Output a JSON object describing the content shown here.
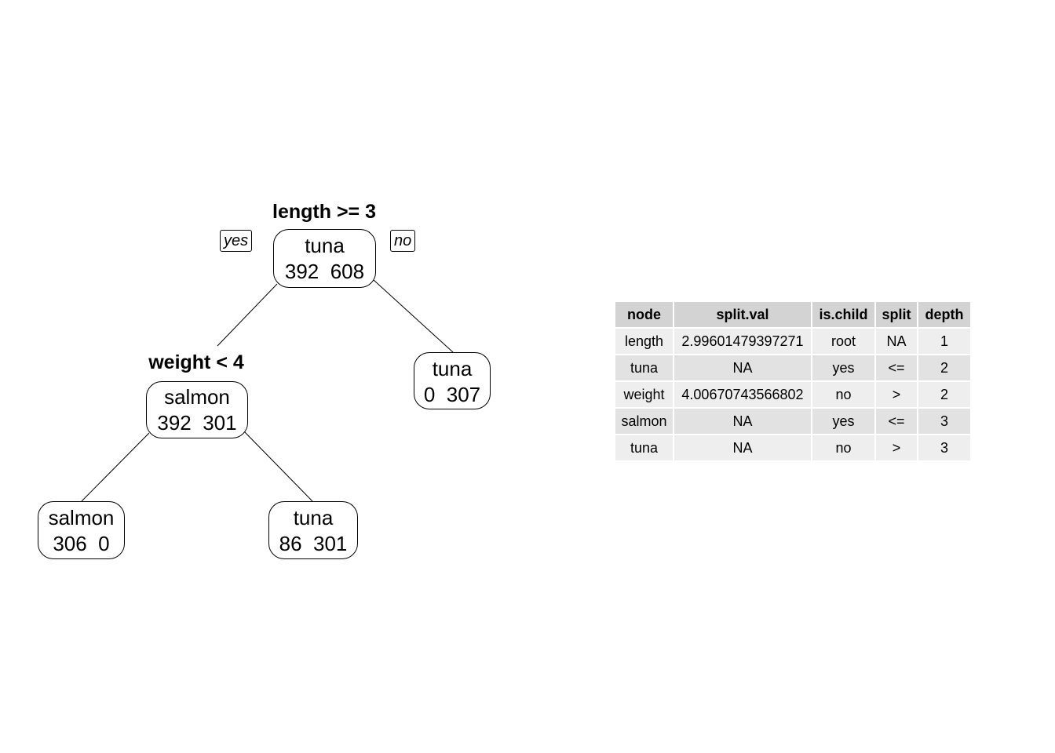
{
  "tree": {
    "root": {
      "split": "length >= 3",
      "label": "tuna",
      "counts": "392  608"
    },
    "yes_tag": "yes",
    "no_tag": "no",
    "left": {
      "split": "weight < 4",
      "label": "salmon",
      "counts": "392  301"
    },
    "right": {
      "label": "tuna",
      "counts": "0  307"
    },
    "left_left": {
      "label": "salmon",
      "counts": "306  0"
    },
    "left_right": {
      "label": "tuna",
      "counts": "86  301"
    }
  },
  "table": {
    "columns": [
      "node",
      "split.val",
      "is.child",
      "split",
      "depth"
    ],
    "rows": [
      [
        "length",
        "2.99601479397271",
        "root",
        "NA",
        "1"
      ],
      [
        "tuna",
        "NA",
        "yes",
        "<=",
        "2"
      ],
      [
        "weight",
        "4.00670743566802",
        "no",
        ">",
        "2"
      ],
      [
        "salmon",
        "NA",
        "yes",
        "<=",
        "3"
      ],
      [
        "tuna",
        "NA",
        "no",
        ">",
        "3"
      ]
    ]
  }
}
